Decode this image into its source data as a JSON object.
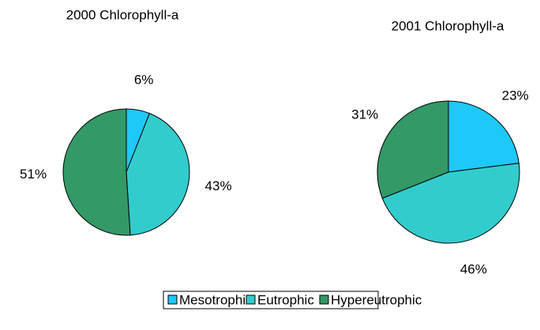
{
  "chart_data": [
    {
      "type": "pie",
      "title": "2000 Chlorophyll-a",
      "categories": [
        "Mesotrophic",
        "Eutrophic",
        "Hypereutrophic"
      ],
      "values": [
        6,
        43,
        51
      ],
      "value_labels": [
        "6%",
        "43%",
        "51%"
      ],
      "colors": [
        "#1ec8f8",
        "#33cccc",
        "#339966"
      ]
    },
    {
      "type": "pie",
      "title": "2001 Chlorophyll-a",
      "categories": [
        "Mesotrophic",
        "Eutrophic",
        "Hypereutrophic"
      ],
      "values": [
        23,
        46,
        31
      ],
      "value_labels": [
        "23%",
        "46%",
        "31%"
      ],
      "colors": [
        "#1ec8f8",
        "#33cccc",
        "#339966"
      ]
    }
  ]
}
